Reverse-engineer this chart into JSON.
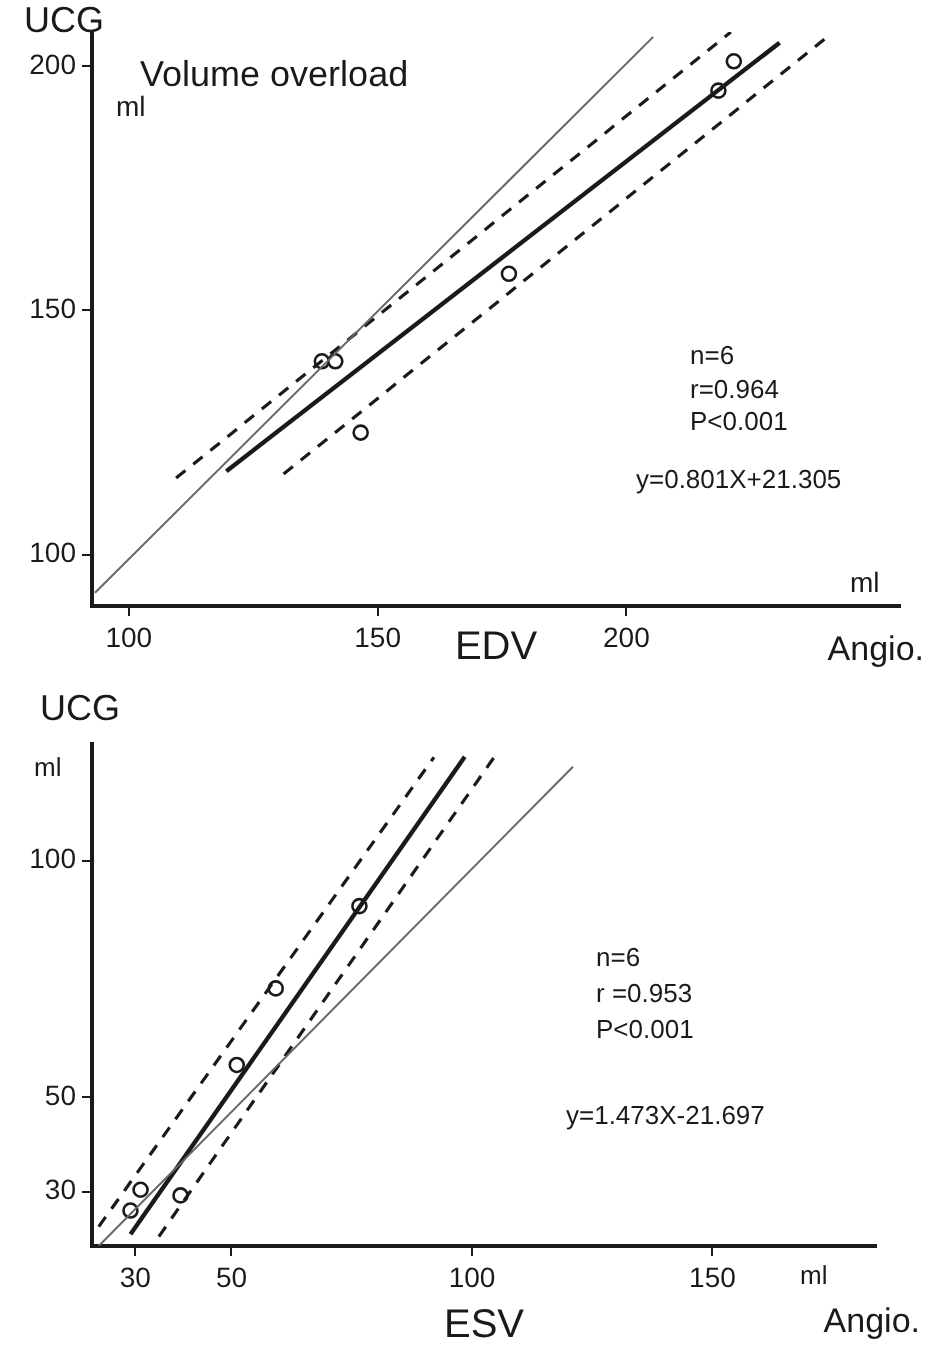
{
  "chart_data": [
    {
      "type": "scatter",
      "title": "Volume overload",
      "xlabel": "EDV",
      "ylabel": "UCG",
      "annotations": [
        "ml",
        "ml",
        "Angio.",
        "n=6",
        "r=0.964",
        "P<0.001",
        "y=0.801X+21.305"
      ],
      "xlim": [
        92.6,
        255
      ],
      "xticks": [
        100,
        150,
        200
      ],
      "ylim": [
        89.5,
        207
      ],
      "yticks": [
        100,
        150,
        200
      ],
      "grid": false,
      "legend": false,
      "series": [
        {
          "marker": "circle",
          "color": "#1a1a1a",
          "x": [
            138.8,
            141.5,
            146.6,
            176.4,
            218.5,
            221.6
          ],
          "values": [
            139.6,
            139.6,
            125.0,
            157.5,
            195.0,
            201.0
          ]
        },
        {
          "type": "line",
          "color": "#1a1a1a",
          "line_style": "solid",
          "x": [
            119.6,
            230.8
          ],
          "values": [
            117.1,
            204.8
          ]
        },
        {
          "type": "line",
          "color": "#1a1a1a",
          "line_style": "dashed",
          "x": [
            109.5,
            221
          ],
          "values": [
            115.7,
            207
          ]
        },
        {
          "type": "line",
          "color": "#1a1a1a",
          "line_style": "dashed",
          "x": [
            131.1,
            240.5
          ],
          "values": [
            116.5,
            206.1
          ]
        },
        {
          "type": "line",
          "color": "#666666",
          "line_style": "solid",
          "x": [
            93.2,
            205.4
          ],
          "values": [
            92.2,
            206
          ]
        }
      ]
    },
    {
      "type": "scatter",
      "xlabel": "ESV",
      "ylabel": "UCG",
      "annotations": [
        "ml",
        "ml",
        "Angio.",
        "n=6",
        "r =0.953",
        "P<0.001",
        "y=1.473X-21.697"
      ],
      "xlim": [
        21,
        184
      ],
      "xticks": [
        30,
        50,
        100,
        150
      ],
      "ylim": [
        18.5,
        124.7
      ],
      "yticks": [
        30,
        50,
        100
      ],
      "grid": false,
      "legend": false,
      "series": [
        {
          "marker": "circle",
          "color": "#1a1a1a",
          "x": [
            29.0,
            31.1,
            39.4,
            51.1,
            59.2,
            76.6
          ],
          "values": [
            26.0,
            30.4,
            29.2,
            56.8,
            73.0,
            90.4
          ]
        },
        {
          "type": "line",
          "color": "#1a1a1a",
          "line_style": "solid",
          "x": [
            29,
            98.5
          ],
          "values": [
            21,
            122
          ]
        },
        {
          "type": "line",
          "color": "#1a1a1a",
          "line_style": "dashed",
          "x": [
            22.4,
            92.1
          ],
          "values": [
            22.6,
            121.9
          ]
        },
        {
          "type": "line",
          "color": "#1a1a1a",
          "line_style": "dashed",
          "x": [
            34.9,
            104.6
          ],
          "values": [
            20.5,
            121.9
          ]
        },
        {
          "type": "line",
          "color": "#666666",
          "line_style": "solid",
          "x": [
            22.4,
            121
          ],
          "values": [
            18.5,
            119.9
          ]
        }
      ]
    }
  ]
}
